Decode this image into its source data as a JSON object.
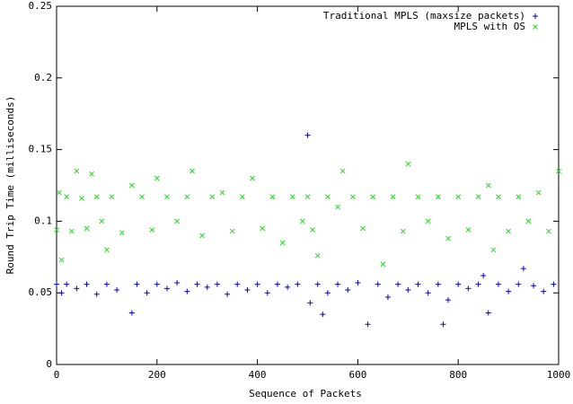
{
  "chart_data": {
    "type": "scatter",
    "xlabel": "Sequence of Packets",
    "ylabel": "Round Trip Time (milliseconds)",
    "xlim": [
      0,
      1000
    ],
    "xticks": [
      0,
      200,
      400,
      600,
      800,
      1000
    ],
    "ylim": [
      0,
      0.25
    ],
    "yticks": [
      0,
      0.05,
      0.1,
      0.15,
      0.2,
      0.25
    ],
    "legend": "top-right",
    "series": [
      {
        "name": "Traditional MPLS (maxsize packets)",
        "color": "#0000c8",
        "marker": "plus",
        "x": [
          0,
          10,
          20,
          40,
          60,
          80,
          100,
          120,
          150,
          160,
          180,
          200,
          220,
          240,
          260,
          280,
          300,
          320,
          340,
          360,
          380,
          400,
          420,
          440,
          460,
          480,
          500,
          505,
          520,
          530,
          540,
          560,
          580,
          600,
          620,
          640,
          660,
          680,
          700,
          720,
          740,
          760,
          770,
          780,
          800,
          820,
          840,
          850,
          860,
          880,
          900,
          920,
          930,
          950,
          970,
          990
        ],
        "values": [
          0.056,
          0.05,
          0.056,
          0.053,
          0.056,
          0.049,
          0.056,
          0.052,
          0.036,
          0.056,
          0.05,
          0.056,
          0.053,
          0.057,
          0.051,
          0.056,
          0.054,
          0.056,
          0.049,
          0.056,
          0.052,
          0.056,
          0.05,
          0.056,
          0.054,
          0.056,
          0.16,
          0.043,
          0.056,
          0.035,
          0.05,
          0.056,
          0.052,
          0.057,
          0.028,
          0.056,
          0.047,
          0.056,
          0.052,
          0.056,
          0.05,
          0.056,
          0.028,
          0.045,
          0.056,
          0.053,
          0.056,
          0.062,
          0.036,
          0.056,
          0.051,
          0.056,
          0.067,
          0.055,
          0.051,
          0.056
        ]
      },
      {
        "name": "MPLS with OS",
        "color": "#22dd22",
        "marker": "cross",
        "x": [
          0,
          5,
          10,
          20,
          30,
          40,
          50,
          60,
          70,
          80,
          90,
          100,
          110,
          130,
          150,
          170,
          190,
          200,
          220,
          240,
          260,
          270,
          290,
          310,
          330,
          350,
          370,
          390,
          410,
          430,
          450,
          470,
          490,
          500,
          510,
          520,
          540,
          560,
          570,
          590,
          610,
          630,
          650,
          670,
          690,
          700,
          720,
          740,
          760,
          780,
          800,
          820,
          840,
          860,
          870,
          880,
          900,
          920,
          940,
          960,
          980,
          1000
        ],
        "values": [
          0.094,
          0.12,
          0.073,
          0.117,
          0.093,
          0.135,
          0.116,
          0.095,
          0.133,
          0.117,
          0.1,
          0.08,
          0.117,
          0.092,
          0.125,
          0.117,
          0.094,
          0.13,
          0.117,
          0.1,
          0.117,
          0.135,
          0.09,
          0.117,
          0.12,
          0.093,
          0.117,
          0.13,
          0.095,
          0.117,
          0.085,
          0.117,
          0.1,
          0.117,
          0.094,
          0.076,
          0.117,
          0.11,
          0.135,
          0.117,
          0.095,
          0.117,
          0.07,
          0.117,
          0.093,
          0.14,
          0.117,
          0.1,
          0.117,
          0.088,
          0.117,
          0.094,
          0.117,
          0.125,
          0.08,
          0.117,
          0.093,
          0.117,
          0.1,
          0.12,
          0.093,
          0.135
        ]
      }
    ]
  }
}
